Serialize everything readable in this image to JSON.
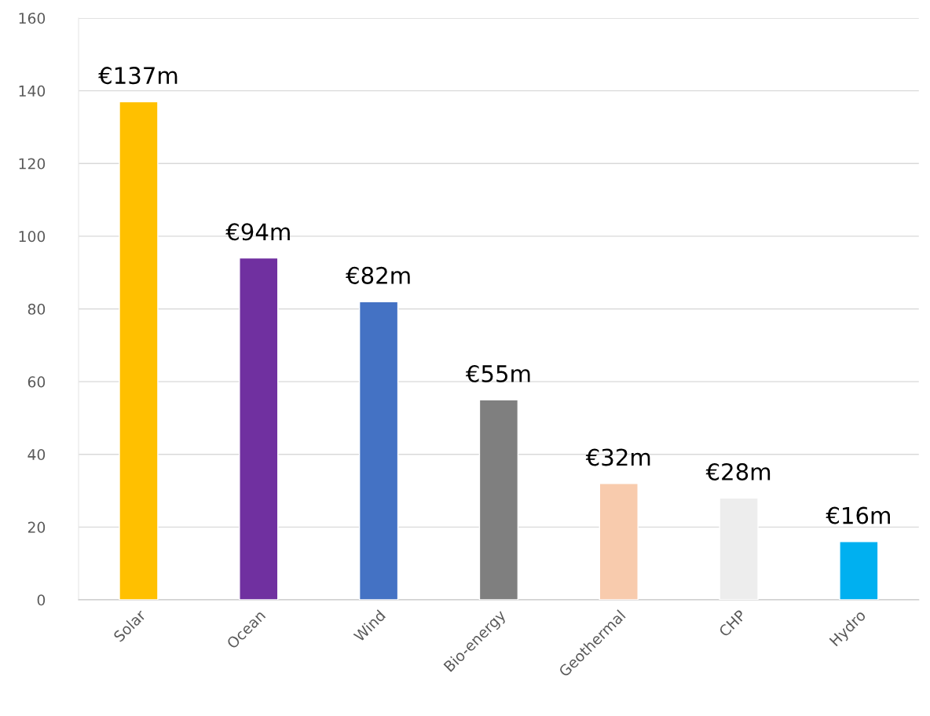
{
  "chart_data": {
    "type": "bar",
    "categories": [
      "Solar",
      "Ocean",
      "Wind",
      "Bio-energy",
      "Geothermal",
      "CHP",
      "Hydro"
    ],
    "values": [
      137,
      94,
      82,
      55,
      32,
      28,
      16
    ],
    "colors": [
      "#ffc000",
      "#7030a0",
      "#4472c4",
      "#7f7f7f",
      "#f8cbad",
      "#ededed",
      "#00b0f0"
    ],
    "value_labels": [
      "€137m",
      "€94m",
      "€82m",
      "€55m",
      "€32m",
      "€28m",
      "€16m"
    ],
    "ylim": [
      0,
      160
    ],
    "yticks": [
      0,
      20,
      40,
      60,
      80,
      100,
      120,
      140,
      160
    ],
    "grid": "y",
    "legend": false
  }
}
